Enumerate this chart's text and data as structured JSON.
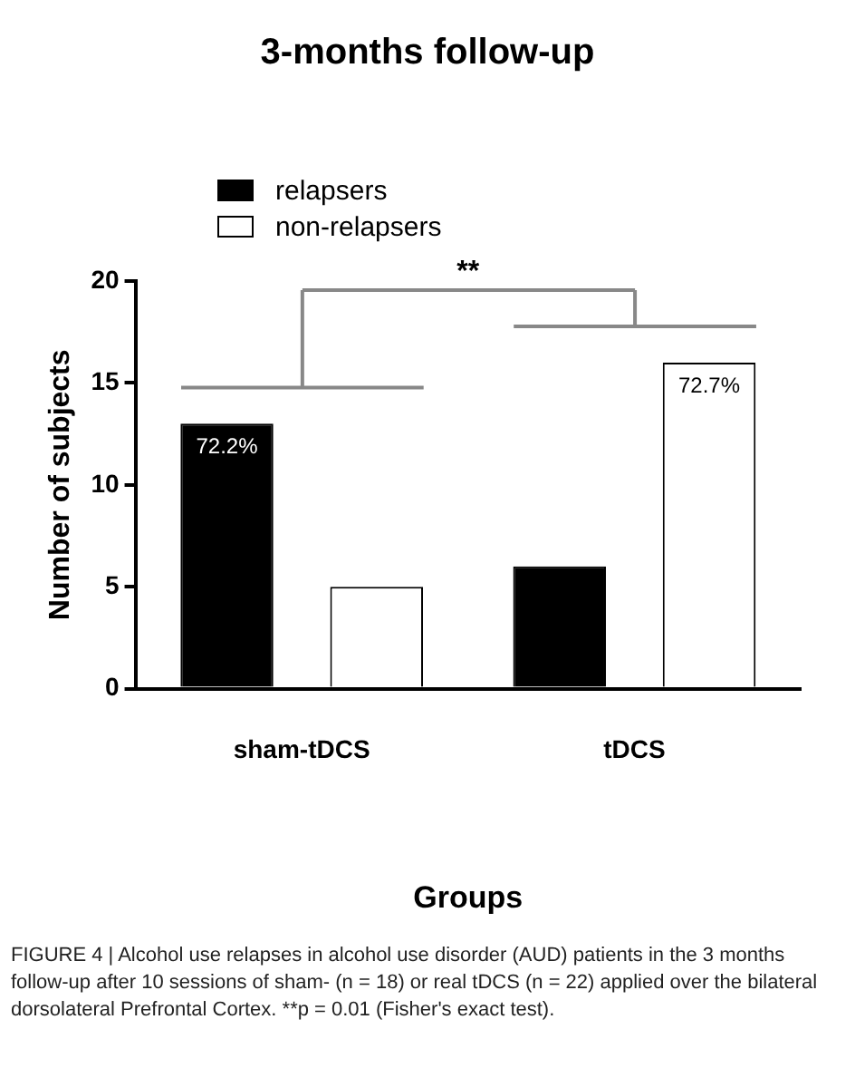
{
  "chart_data": {
    "type": "bar",
    "title": "3-months follow-up",
    "xlabel": "Groups",
    "ylabel": "Number of subjects",
    "categories": [
      "sham-tDCS",
      "tDCS"
    ],
    "series": [
      {
        "name": "relapsers",
        "color": "#000000",
        "values": [
          13,
          6
        ]
      },
      {
        "name": "non-relapsers",
        "color": "#ffffff",
        "values": [
          5,
          16
        ]
      }
    ],
    "ylim": [
      0,
      20
    ],
    "yticks": [
      0,
      5,
      10,
      15,
      20
    ],
    "grid": false,
    "legend": "top left",
    "annotations": [
      "**",
      "72.2%",
      "72.7%",
      "FIGURE 4 | Alcohol use relapses in alcohol use disorder (AUD) patients in the 3 months follow-up after 10 sessions of sham- (n = 18) or real tDCS (n = 22) applied over the bilateral dorsolateral Prefrontal Cortex. **p = 0.01 (Fisher's exact test)."
    ]
  }
}
